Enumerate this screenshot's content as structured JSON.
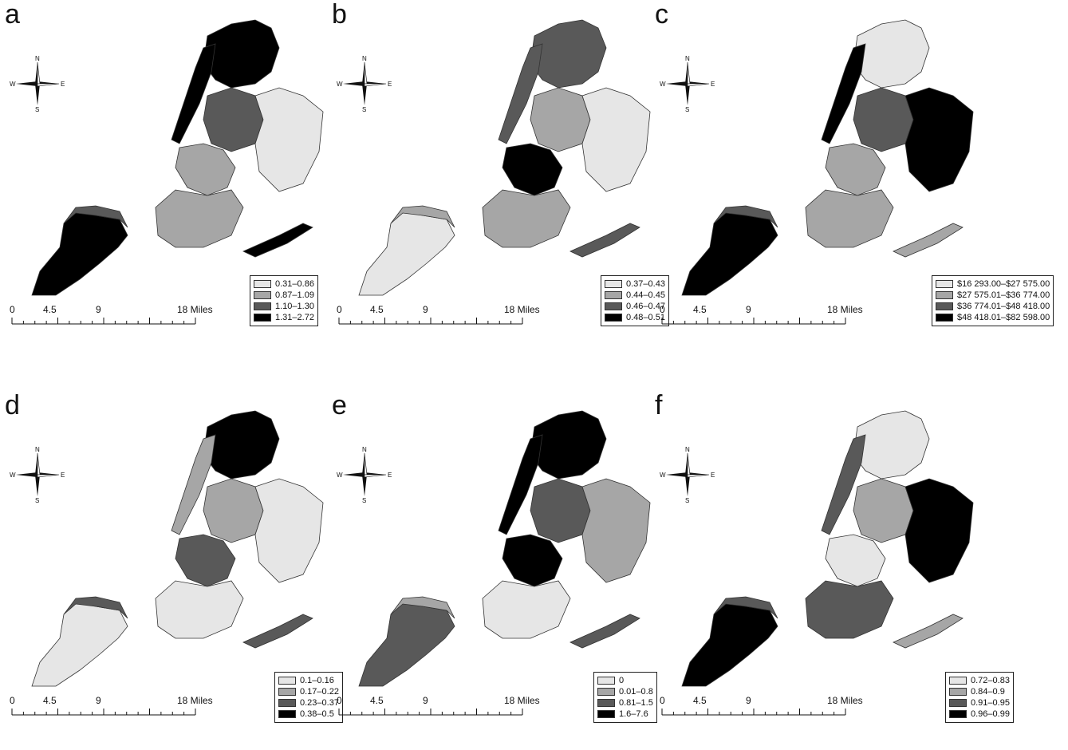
{
  "colors": {
    "class1": "#e6e6e6",
    "class2": "#a6a6a6",
    "class3": "#595959",
    "class4": "#000000",
    "outline": "#333333"
  },
  "compass": {
    "n": "N",
    "s": "S",
    "e": "E",
    "w": "W"
  },
  "scale": {
    "t0": "0",
    "t1": "4.5",
    "t2": "9",
    "t3": "18 Miles"
  },
  "panels": [
    {
      "letter": "a",
      "legend": [
        "0.31–0.86",
        "0.87–1.09",
        "1.10–1.30",
        "1.31–2.72"
      ],
      "fills": {
        "staten": 4,
        "statenNorth": 3,
        "bronx": 4,
        "manhattan": 4,
        "queensW": 3,
        "queensE": 1,
        "brooklynN": 2,
        "brooklynS": 2,
        "rockaway": 4
      }
    },
    {
      "letter": "b",
      "legend": [
        "0.37–0.43",
        "0.44–0.45",
        "0.46–0.47",
        "0.48–0.51"
      ],
      "fills": {
        "staten": 1,
        "statenNorth": 2,
        "bronx": 3,
        "manhattan": 3,
        "queensW": 2,
        "queensE": 1,
        "brooklynN": 4,
        "brooklynS": 2,
        "rockaway": 3
      }
    },
    {
      "letter": "c",
      "legend": [
        "$16 293.00–$27 575.00",
        "$27 575.01–$36 774.00",
        "$36 774.01–$48 418.00",
        "$48 418.01–$82 598.00"
      ],
      "fills": {
        "staten": 4,
        "statenNorth": 3,
        "bronx": 1,
        "manhattan": 4,
        "queensW": 3,
        "queensE": 4,
        "brooklynN": 2,
        "brooklynS": 2,
        "rockaway": 2
      }
    },
    {
      "letter": "d",
      "legend": [
        "0.1–0.16",
        "0.17–0.22",
        "0.23–0.37",
        "0.38–0.5"
      ],
      "fills": {
        "staten": 1,
        "statenNorth": 3,
        "bronx": 4,
        "manhattan": 2,
        "queensW": 2,
        "queensE": 1,
        "brooklynN": 3,
        "brooklynS": 1,
        "rockaway": 3
      }
    },
    {
      "letter": "e",
      "legend": [
        "0",
        "0.01–0.8",
        "0.81–1.5",
        "1.6–7.6"
      ],
      "fills": {
        "staten": 3,
        "statenNorth": 2,
        "bronx": 4,
        "manhattan": 4,
        "queensW": 3,
        "queensE": 2,
        "brooklynN": 4,
        "brooklynS": 1,
        "rockaway": 3
      }
    },
    {
      "letter": "f",
      "legend": [
        "0.72–0.83",
        "0.84–0.9",
        "0.91–0.95",
        "0.96–0.99"
      ],
      "fills": {
        "staten": 4,
        "statenNorth": 3,
        "bronx": 1,
        "manhattan": 3,
        "queensW": 2,
        "queensE": 4,
        "brooklynN": 1,
        "brooklynS": 3,
        "rockaway": 2
      }
    }
  ]
}
